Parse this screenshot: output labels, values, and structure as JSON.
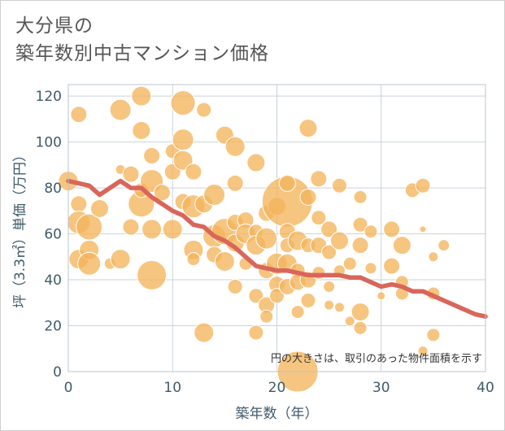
{
  "title": {
    "line1": "大分県の",
    "line2": "築年数別中古マンション価格"
  },
  "colors": {
    "bubble_fill": "#f3b55c",
    "bubble_stroke": "#ffffff",
    "line": "#d9665a",
    "grid": "#c9d3dc",
    "plot_border": "#b8c4cf"
  },
  "chart_data": {
    "type": "scatter",
    "xlabel": "築年数（年）",
    "ylabel": "坪（3.3㎡）単価（万円）",
    "xlim": [
      0,
      40
    ],
    "ylim": [
      0,
      125
    ],
    "xticks": [
      "0",
      "10",
      "20",
      "30",
      "40"
    ],
    "yticks": [
      "0",
      "20",
      "40",
      "60",
      "80",
      "100",
      "120"
    ],
    "grid": true,
    "annotation": "円の大きさは、取引のあった物件面積を示す",
    "series": [
      {
        "type": "bubble",
        "points": [
          [
            0,
            83,
            12
          ],
          [
            1,
            112,
            10
          ],
          [
            1,
            73,
            10
          ],
          [
            1,
            65,
            14
          ],
          [
            1,
            49,
            12
          ],
          [
            2,
            53,
            12
          ],
          [
            2,
            47,
            14
          ],
          [
            2,
            63,
            16
          ],
          [
            3,
            71,
            11
          ],
          [
            4,
            47,
            7
          ],
          [
            5,
            114,
            13
          ],
          [
            5,
            88,
            6
          ],
          [
            5,
            49,
            12
          ],
          [
            6,
            86,
            10
          ],
          [
            6,
            63,
            10
          ],
          [
            7,
            120,
            12
          ],
          [
            7,
            105,
            11
          ],
          [
            7,
            73,
            16
          ],
          [
            7,
            79,
            9
          ],
          [
            8,
            94,
            10
          ],
          [
            8,
            83,
            14
          ],
          [
            8,
            42,
            18
          ],
          [
            8,
            62,
            12
          ],
          [
            9,
            78,
            10
          ],
          [
            10,
            96,
            9
          ],
          [
            10,
            87,
            10
          ],
          [
            10,
            62,
            12
          ],
          [
            11,
            117,
            15
          ],
          [
            11,
            101,
            13
          ],
          [
            11,
            92,
            12
          ],
          [
            11,
            74,
            10
          ],
          [
            12,
            87,
            10
          ],
          [
            12,
            72,
            14
          ],
          [
            12,
            53,
            12
          ],
          [
            12,
            49,
            8
          ],
          [
            13,
            114,
            9
          ],
          [
            13,
            73,
            11
          ],
          [
            13,
            17,
            12
          ],
          [
            14,
            77,
            13
          ],
          [
            14,
            59,
            14
          ],
          [
            14,
            51,
            10
          ],
          [
            15,
            103,
            11
          ],
          [
            15,
            61,
            16
          ],
          [
            15,
            48,
            12
          ],
          [
            16,
            98,
            12
          ],
          [
            16,
            82,
            10
          ],
          [
            16,
            65,
            10
          ],
          [
            16,
            56,
            11
          ],
          [
            16,
            37,
            9
          ],
          [
            17,
            66,
            10
          ],
          [
            17,
            47,
            8
          ],
          [
            17,
            60,
            12
          ],
          [
            18,
            91,
            11
          ],
          [
            18,
            61,
            9
          ],
          [
            18,
            55,
            12
          ],
          [
            18,
            33,
            9
          ],
          [
            18,
            17,
            9
          ],
          [
            19,
            69,
            10
          ],
          [
            19,
            58,
            13
          ],
          [
            19,
            44,
            10
          ],
          [
            19,
            29,
            10
          ],
          [
            19,
            24,
            8
          ],
          [
            20,
            72,
            11
          ],
          [
            20,
            47,
            13
          ],
          [
            20,
            38,
            10
          ],
          [
            20,
            33,
            9
          ],
          [
            21,
            74,
            31
          ],
          [
            21,
            82,
            10
          ],
          [
            21,
            61,
            10
          ],
          [
            21,
            55,
            9
          ],
          [
            21,
            47,
            12
          ],
          [
            21,
            37,
            10
          ],
          [
            22,
            57,
            12
          ],
          [
            22,
            44,
            9
          ],
          [
            22,
            39,
            10
          ],
          [
            22,
            26,
            8
          ],
          [
            22,
            0,
            25
          ],
          [
            23,
            106,
            11
          ],
          [
            23,
            76,
            10
          ],
          [
            23,
            55,
            9
          ],
          [
            23,
            40,
            10
          ],
          [
            23,
            31,
            9
          ],
          [
            24,
            84,
            10
          ],
          [
            24,
            67,
            9
          ],
          [
            24,
            55,
            10
          ],
          [
            24,
            43,
            8
          ],
          [
            25,
            62,
            10
          ],
          [
            25,
            52,
            9
          ],
          [
            25,
            37,
            7
          ],
          [
            25,
            29,
            6
          ],
          [
            26,
            81,
            9
          ],
          [
            26,
            57,
            11
          ],
          [
            26,
            44,
            7
          ],
          [
            26,
            28,
            6
          ],
          [
            27,
            47,
            8
          ],
          [
            27,
            22,
            6
          ],
          [
            28,
            76,
            8
          ],
          [
            28,
            64,
            9
          ],
          [
            28,
            55,
            10
          ],
          [
            28,
            26,
            11
          ],
          [
            28,
            19,
            8
          ],
          [
            29,
            61,
            8
          ],
          [
            29,
            45,
            7
          ],
          [
            30,
            33,
            5
          ],
          [
            31,
            62,
            10
          ],
          [
            31,
            46,
            10
          ],
          [
            32,
            55,
            11
          ],
          [
            32,
            39,
            8
          ],
          [
            32,
            34,
            8
          ],
          [
            33,
            79,
            9
          ],
          [
            34,
            81,
            9
          ],
          [
            34,
            62,
            4
          ],
          [
            34,
            9,
            6
          ],
          [
            35,
            50,
            6
          ],
          [
            35,
            34,
            8
          ],
          [
            35,
            16,
            8
          ],
          [
            36,
            55,
            7
          ]
        ]
      },
      {
        "type": "line",
        "points": [
          [
            0,
            83
          ],
          [
            1,
            82
          ],
          [
            2,
            81
          ],
          [
            3,
            77
          ],
          [
            4,
            80
          ],
          [
            5,
            83
          ],
          [
            6,
            80
          ],
          [
            7,
            80
          ],
          [
            8,
            76
          ],
          [
            9,
            73
          ],
          [
            10,
            70
          ],
          [
            11,
            68
          ],
          [
            12,
            64
          ],
          [
            13,
            63
          ],
          [
            14,
            59
          ],
          [
            15,
            57
          ],
          [
            16,
            54
          ],
          [
            17,
            50
          ],
          [
            18,
            46
          ],
          [
            19,
            45
          ],
          [
            20,
            44
          ],
          [
            21,
            44
          ],
          [
            22,
            43
          ],
          [
            23,
            42
          ],
          [
            24,
            42
          ],
          [
            25,
            42
          ],
          [
            26,
            42
          ],
          [
            27,
            41
          ],
          [
            28,
            41
          ],
          [
            29,
            39
          ],
          [
            30,
            37
          ],
          [
            31,
            38
          ],
          [
            32,
            37
          ],
          [
            33,
            35
          ],
          [
            34,
            35
          ],
          [
            35,
            33
          ],
          [
            36,
            31
          ],
          [
            37,
            29
          ],
          [
            38,
            27
          ],
          [
            39,
            25
          ],
          [
            40,
            24
          ]
        ]
      }
    ]
  }
}
